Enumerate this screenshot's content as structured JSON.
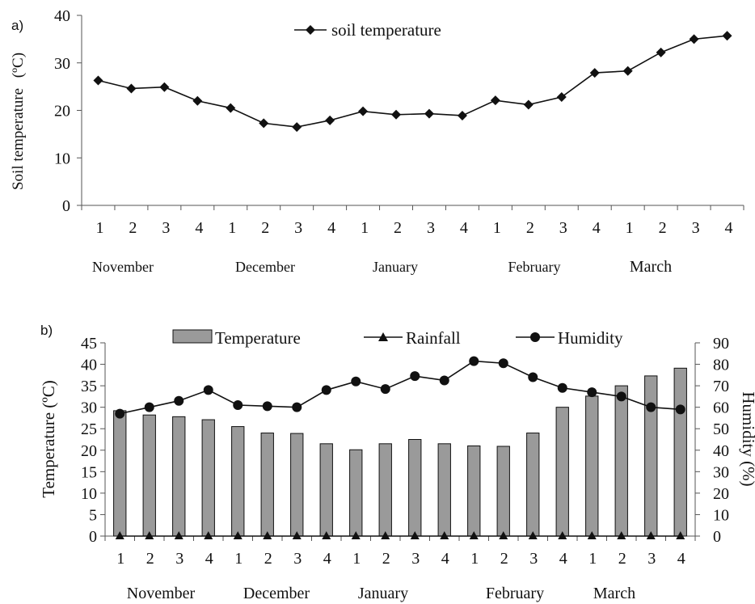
{
  "chart_data": [
    {
      "panel_label": "a)",
      "type": "line",
      "ylabel_main": "Soil temperature",
      "ylabel_unit": "(ºC)",
      "ylim": [
        0,
        40
      ],
      "yticks": [
        "0",
        "10",
        "20",
        "30",
        "40"
      ],
      "categories": [
        "1",
        "2",
        "3",
        "4",
        "1",
        "2",
        "3",
        "4",
        "1",
        "2",
        "3",
        "4",
        "1",
        "2",
        "3",
        "4",
        "1",
        "2",
        "3",
        "4"
      ],
      "months": [
        "November",
        "December",
        "January",
        "February",
        "March"
      ],
      "legend_position": "top-center",
      "grid": false,
      "series": [
        {
          "name": "soil temperature",
          "marker": "diamond",
          "values": [
            26.3,
            24.6,
            24.9,
            22.0,
            20.5,
            17.3,
            16.5,
            17.9,
            19.8,
            19.1,
            19.3,
            18.9,
            22.1,
            21.2,
            22.8,
            27.9,
            28.3,
            32.2,
            35.0,
            35.7
          ]
        }
      ]
    },
    {
      "panel_label": "b)",
      "type": "bar",
      "ylabel_left": "Temperature (ºC)",
      "ylabel_right": "Humidity (%)",
      "ylim_left": [
        0,
        45
      ],
      "ylim_right": [
        0,
        90
      ],
      "yticks_left": [
        "0",
        "5",
        "10",
        "15",
        "20",
        "25",
        "30",
        "35",
        "40",
        "45"
      ],
      "yticks_right": [
        "0",
        "10",
        "20",
        "30",
        "40",
        "50",
        "60",
        "70",
        "80",
        "90"
      ],
      "categories": [
        "1",
        "2",
        "3",
        "4",
        "1",
        "2",
        "3",
        "4",
        "1",
        "2",
        "3",
        "4",
        "1",
        "2",
        "3",
        "4",
        "1",
        "2",
        "3",
        "4"
      ],
      "months": [
        "November",
        "December",
        "January",
        "February",
        "March"
      ],
      "legend_position": "top",
      "grid": false,
      "legend": [
        "Temperature",
        "Rainfall",
        "Humidity"
      ],
      "series": [
        {
          "name": "Temperature",
          "kind": "bar",
          "axis": "left",
          "values": [
            29.2,
            28.2,
            27.8,
            27.1,
            25.5,
            24.0,
            23.9,
            21.5,
            20.1,
            21.5,
            22.5,
            21.5,
            21.0,
            20.9,
            24.0,
            30.0,
            32.6,
            35.0,
            37.3,
            39.1
          ]
        },
        {
          "name": "Rainfall",
          "kind": "line",
          "marker": "triangle",
          "axis": "left",
          "values": [
            0,
            0,
            0,
            0,
            0,
            0,
            0,
            0,
            0,
            0,
            0,
            0,
            0,
            0,
            0,
            0,
            0,
            0,
            0,
            0
          ]
        },
        {
          "name": "Humidity",
          "kind": "line",
          "marker": "circle",
          "axis": "right",
          "values": [
            57,
            60,
            63,
            68,
            61,
            60.5,
            60,
            68,
            72,
            68.5,
            74.5,
            72.5,
            81.5,
            80.5,
            74,
            69,
            67,
            65,
            60,
            59
          ]
        }
      ]
    }
  ]
}
